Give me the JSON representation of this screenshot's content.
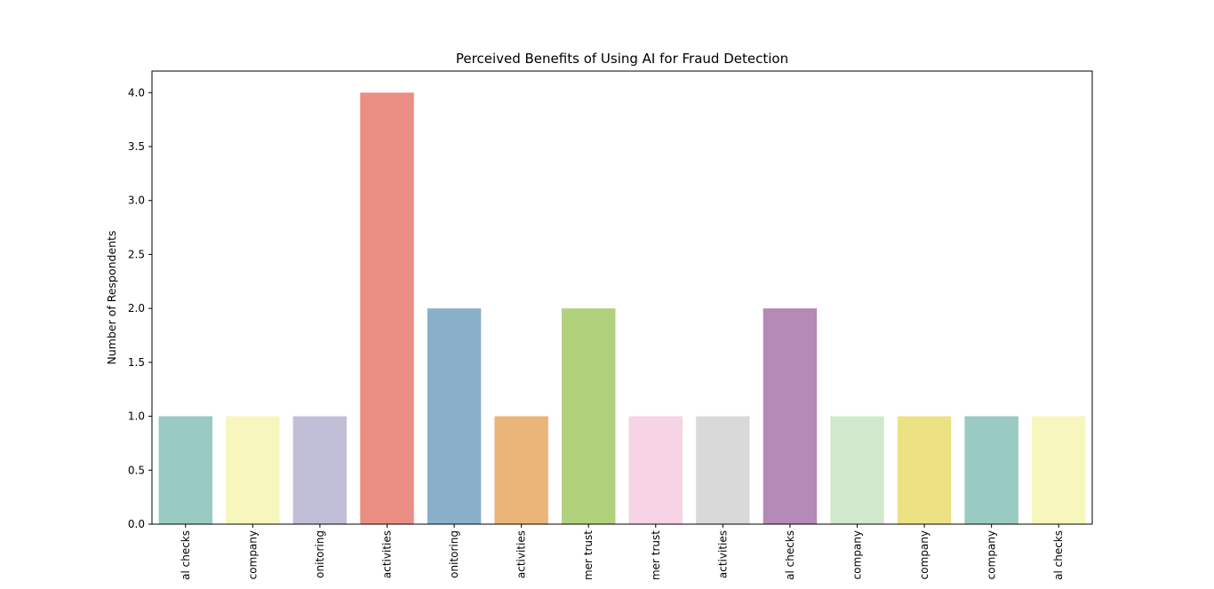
{
  "chart_data": {
    "type": "bar",
    "title": "Perceived Benefits of Using AI for Fraud Detection",
    "xlabel": "",
    "ylabel": "Number of Respondents",
    "ylim": [
      0,
      4.2
    ],
    "yticks": [
      "0.0",
      "0.5",
      "1.0",
      "1.5",
      "2.0",
      "2.5",
      "3.0",
      "3.5",
      "4.0"
    ],
    "grid": false,
    "legend": "none",
    "categories": [
      "al checks",
      "company",
      "onitoring",
      "activities",
      "onitoring",
      "activities",
      "mer trust",
      "mer trust",
      "activities",
      "al checks",
      "company",
      "company",
      "company",
      "al checks"
    ],
    "values": [
      1,
      1,
      1,
      4,
      2,
      1,
      2,
      1,
      1,
      2,
      1,
      1,
      1,
      1
    ],
    "colors": [
      "#99cbc2",
      "#f7f6bc",
      "#c1bfd7",
      "#ea8e84",
      "#8aafca",
      "#ebb478",
      "#b1d17d",
      "#f6d3e5",
      "#d9d9d9",
      "#b58ab6",
      "#d2e8cc",
      "#ede283",
      "#99cbc2",
      "#f7f6bc"
    ]
  }
}
